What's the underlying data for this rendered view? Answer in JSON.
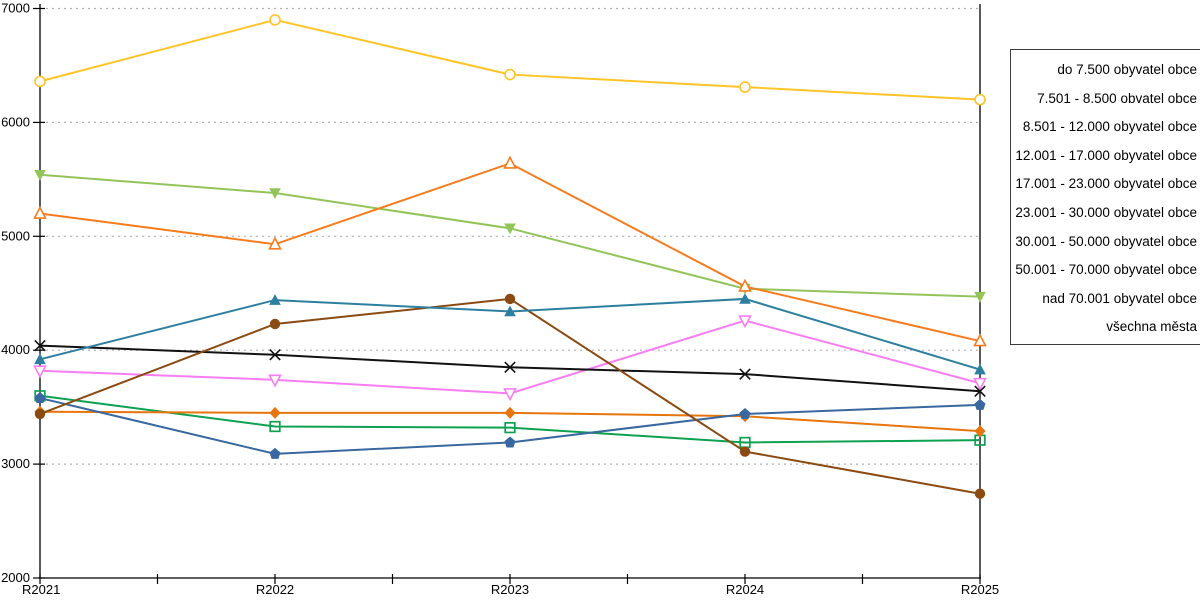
{
  "chart_data": {
    "type": "line",
    "x": [
      "R2021",
      "R2022",
      "R2023",
      "R2024",
      "R2025"
    ],
    "xlabel": "",
    "ylabel": "",
    "title": "",
    "ylim": [
      2000,
      7000
    ],
    "y_ticks": [
      2000,
      3000,
      4000,
      5000,
      6000,
      7000
    ],
    "grid": "horizontal-dotted",
    "grid_color": "#b0b0b0",
    "axis_color": "#000000",
    "legend_position": "right-outside-box",
    "legend_text_align": "right",
    "series": [
      {
        "name": "do 7.500 obyvatel obce",
        "color": "#FFC428",
        "marker": "circle-open",
        "values": [
          6360,
          6900,
          6420,
          6310,
          6200
        ]
      },
      {
        "name": "7.501 - 8.500 obvatel obce",
        "color": "#F57B1C",
        "marker": "triangle-up-open",
        "values": [
          5200,
          4930,
          5640,
          4560,
          4080
        ]
      },
      {
        "name": "8.501 - 12.000 obyvatel obce",
        "color": "#92C45A",
        "marker": "triangle-down-filled",
        "values": [
          5540,
          5380,
          5070,
          4540,
          4470
        ]
      },
      {
        "name": "12.001 - 17.000 obyvatel obce",
        "color": "#2C7F9E",
        "marker": "triangle-up-filled",
        "values": [
          3920,
          4440,
          4340,
          4450,
          3830
        ]
      },
      {
        "name": "17.001 - 23.000 obyvatel obce",
        "color": "#8B4A12",
        "marker": "circle-filled",
        "values": [
          3440,
          4230,
          4450,
          3110,
          2740
        ]
      },
      {
        "name": "23.001 - 30.000 obyvatel obce",
        "color": "#111111",
        "marker": "x",
        "values": [
          4040,
          3960,
          3850,
          3790,
          3640
        ]
      },
      {
        "name": "30.001 - 50.000 obyvatel obce",
        "color": "#F87DF2",
        "marker": "triangle-down-open",
        "values": [
          3820,
          3740,
          3620,
          4260,
          3710
        ]
      },
      {
        "name": "50.001 - 70.000 obyvatel obce",
        "color": "#38689F",
        "marker": "pentagon-filled",
        "values": [
          3580,
          3090,
          3190,
          3440,
          3520
        ]
      },
      {
        "name": "nad 70.001 obyvatel obce",
        "color": "#E8740E",
        "marker": "diamond-filled",
        "values": [
          3460,
          3450,
          3450,
          3420,
          3290
        ]
      },
      {
        "name": "všechna města",
        "color": "#0EA150",
        "marker": "square-open",
        "values": [
          3600,
          3330,
          3320,
          3190,
          3210
        ]
      }
    ]
  }
}
